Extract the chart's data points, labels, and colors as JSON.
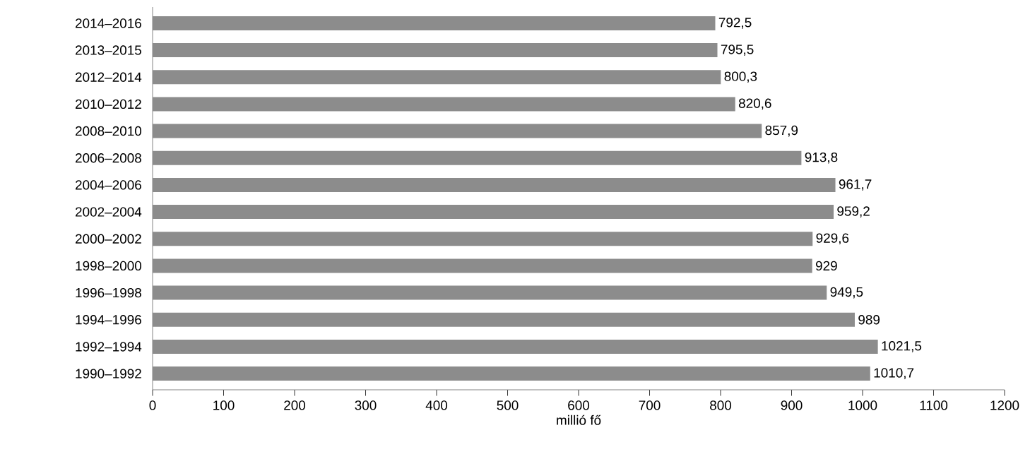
{
  "chart_data": {
    "type": "bar",
    "orientation": "horizontal",
    "xlabel": "millió fő",
    "categories": [
      "2014–2016",
      "2013–2015",
      "2012–2014",
      "2010–2012",
      "2008–2010",
      "2006–2008",
      "2004–2006",
      "2002–2004",
      "2000–2002",
      "1998–2000",
      "1996–1998",
      "1994–1996",
      "1992–1994",
      "1990–1992"
    ],
    "values": [
      792.5,
      795.5,
      800.3,
      820.6,
      857.9,
      913.8,
      961.7,
      959.2,
      929.6,
      929,
      949.5,
      989,
      1021.5,
      1010.7
    ],
    "value_labels": [
      "792,5",
      "795,5",
      "800,3",
      "820,6",
      "857,9",
      "913,8",
      "961,7",
      "959,2",
      "929,6",
      "929",
      "949,5",
      "989",
      "1021,5",
      "1010,7"
    ],
    "color": "#8c8c8c",
    "xlim": [
      0,
      1200
    ],
    "xticks": [
      0,
      100,
      200,
      300,
      400,
      500,
      600,
      700,
      800,
      900,
      1000,
      1100,
      1200
    ],
    "grid": false
  }
}
